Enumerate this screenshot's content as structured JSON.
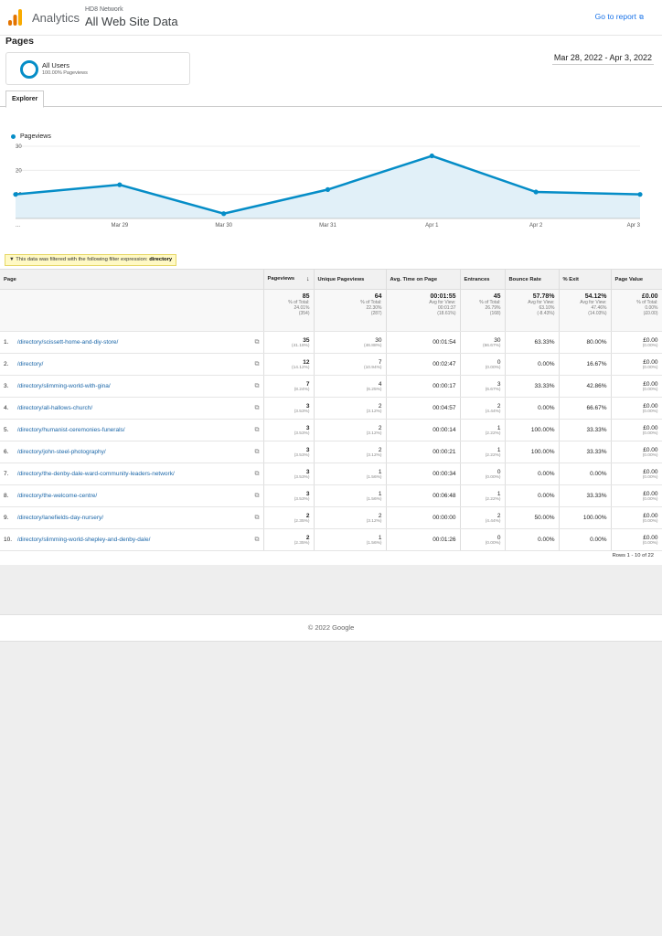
{
  "header": {
    "brand": "Analytics",
    "property": "HD8 Network",
    "view": "All Web Site Data",
    "goto_report": "Go to report",
    "goto_icon": "external-link-icon"
  },
  "page_title": "Pages",
  "segment": {
    "name": "All Users",
    "sub": "100.00% Pageviews"
  },
  "date_range": "Mar 28, 2022 - Apr 3, 2022",
  "tabs": [
    "Explorer"
  ],
  "chart_data": {
    "type": "line",
    "series": [
      {
        "name": "Pageviews",
        "values": [
          10,
          14,
          2,
          12,
          26,
          11,
          10
        ]
      }
    ],
    "x_labels": [
      "...",
      "Mar 29",
      "Mar 30",
      "Mar 31",
      "Apr 1",
      "Apr 2",
      "Apr 3"
    ],
    "y_ticks": [
      "30",
      "20",
      "10"
    ],
    "ylim": [
      0,
      30
    ],
    "color": "#058dc7"
  },
  "filter": {
    "text": "This data was filtered with the following filter expression:",
    "expression": "directory"
  },
  "table": {
    "headers": [
      "Page",
      "Pageviews",
      "Unique Pageviews",
      "Avg. Time on Page",
      "Entrances",
      "Bounce Rate",
      "% Exit",
      "Page Value"
    ],
    "sort_icon": "sort-down-arrow-icon",
    "totals": [
      {
        "value": "85",
        "l1": "% of Total:",
        "l2": "24.01%",
        "l3": "(354)"
      },
      {
        "value": "64",
        "l1": "% of Total:",
        "l2": "22.30%",
        "l3": "(287)"
      },
      {
        "value": "00:01:55",
        "l1": "Avg for View:",
        "l2": "00:01:37",
        "l3": "(18.61%)"
      },
      {
        "value": "45",
        "l1": "% of Total:",
        "l2": "26.79%",
        "l3": "(168)"
      },
      {
        "value": "57.78%",
        "l1": "Avg for View:",
        "l2": "63.10%",
        "l3": "(-8.43%)"
      },
      {
        "value": "54.12%",
        "l1": "Avg for View:",
        "l2": "47.46%",
        "l3": "(14.03%)"
      },
      {
        "value": "£0.00",
        "l1": "% of Total:",
        "l2": "0.00%",
        "l3": "(£0.00)"
      }
    ],
    "rows": [
      {
        "num": "1.",
        "page": "/directory/scissett-home-and-diy-store/",
        "pv": "35",
        "pv_pct": "(41.18%)",
        "upv": "30",
        "upv_pct": "(46.88%)",
        "time": "00:01:54",
        "ent": "30",
        "ent_pct": "(66.67%)",
        "bounce": "63.33%",
        "exit": "80.00%",
        "value": "£0.00",
        "value_pct": "(0.00%)"
      },
      {
        "num": "2.",
        "page": "/directory/",
        "pv": "12",
        "pv_pct": "(14.12%)",
        "upv": "7",
        "upv_pct": "(10.94%)",
        "time": "00:02:47",
        "ent": "0",
        "ent_pct": "(0.00%)",
        "bounce": "0.00%",
        "exit": "16.67%",
        "value": "£0.00",
        "value_pct": "(0.00%)"
      },
      {
        "num": "3.",
        "page": "/directory/slimming-world-with-gina/",
        "pv": "7",
        "pv_pct": "(8.24%)",
        "upv": "4",
        "upv_pct": "(6.25%)",
        "time": "00:00:17",
        "ent": "3",
        "ent_pct": "(6.67%)",
        "bounce": "33.33%",
        "exit": "42.86%",
        "value": "£0.00",
        "value_pct": "(0.00%)"
      },
      {
        "num": "4.",
        "page": "/directory/all-hallows-church/",
        "pv": "3",
        "pv_pct": "(3.53%)",
        "upv": "2",
        "upv_pct": "(3.12%)",
        "time": "00:04:57",
        "ent": "2",
        "ent_pct": "(4.44%)",
        "bounce": "0.00%",
        "exit": "66.67%",
        "value": "£0.00",
        "value_pct": "(0.00%)"
      },
      {
        "num": "5.",
        "page": "/directory/humanist-ceremonies-funerals/",
        "pv": "3",
        "pv_pct": "(3.53%)",
        "upv": "2",
        "upv_pct": "(3.12%)",
        "time": "00:00:14",
        "ent": "1",
        "ent_pct": "(2.22%)",
        "bounce": "100.00%",
        "exit": "33.33%",
        "value": "£0.00",
        "value_pct": "(0.00%)"
      },
      {
        "num": "6.",
        "page": "/directory/john-steel-photography/",
        "pv": "3",
        "pv_pct": "(3.53%)",
        "upv": "2",
        "upv_pct": "(3.12%)",
        "time": "00:00:21",
        "ent": "1",
        "ent_pct": "(2.22%)",
        "bounce": "100.00%",
        "exit": "33.33%",
        "value": "£0.00",
        "value_pct": "(0.00%)"
      },
      {
        "num": "7.",
        "page": "/directory/the-denby-dale-ward-community-leaders-network/",
        "pv": "3",
        "pv_pct": "(3.53%)",
        "upv": "1",
        "upv_pct": "(1.56%)",
        "time": "00:00:34",
        "ent": "0",
        "ent_pct": "(0.00%)",
        "bounce": "0.00%",
        "exit": "0.00%",
        "value": "£0.00",
        "value_pct": "(0.00%)"
      },
      {
        "num": "8.",
        "page": "/directory/the-welcome-centre/",
        "pv": "3",
        "pv_pct": "(3.53%)",
        "upv": "1",
        "upv_pct": "(1.56%)",
        "time": "00:06:48",
        "ent": "1",
        "ent_pct": "(2.22%)",
        "bounce": "0.00%",
        "exit": "33.33%",
        "value": "£0.00",
        "value_pct": "(0.00%)"
      },
      {
        "num": "9.",
        "page": "/directory/lanefields-day-nursery/",
        "pv": "2",
        "pv_pct": "(2.35%)",
        "upv": "2",
        "upv_pct": "(3.12%)",
        "time": "00:00:00",
        "ent": "2",
        "ent_pct": "(4.44%)",
        "bounce": "50.00%",
        "exit": "100.00%",
        "value": "£0.00",
        "value_pct": "(0.00%)"
      },
      {
        "num": "10.",
        "page": "/directory/slimming-world-shepley-and-denby-dale/",
        "pv": "2",
        "pv_pct": "(2.35%)",
        "upv": "1",
        "upv_pct": "(1.56%)",
        "time": "00:01:26",
        "ent": "0",
        "ent_pct": "(0.00%)",
        "bounce": "0.00%",
        "exit": "0.00%",
        "value": "£0.00",
        "value_pct": "(0.00%)"
      }
    ],
    "row_icon": "copy-icon",
    "rows_info": "Rows 1 - 10 of 22"
  },
  "footer": "© 2022 Google"
}
